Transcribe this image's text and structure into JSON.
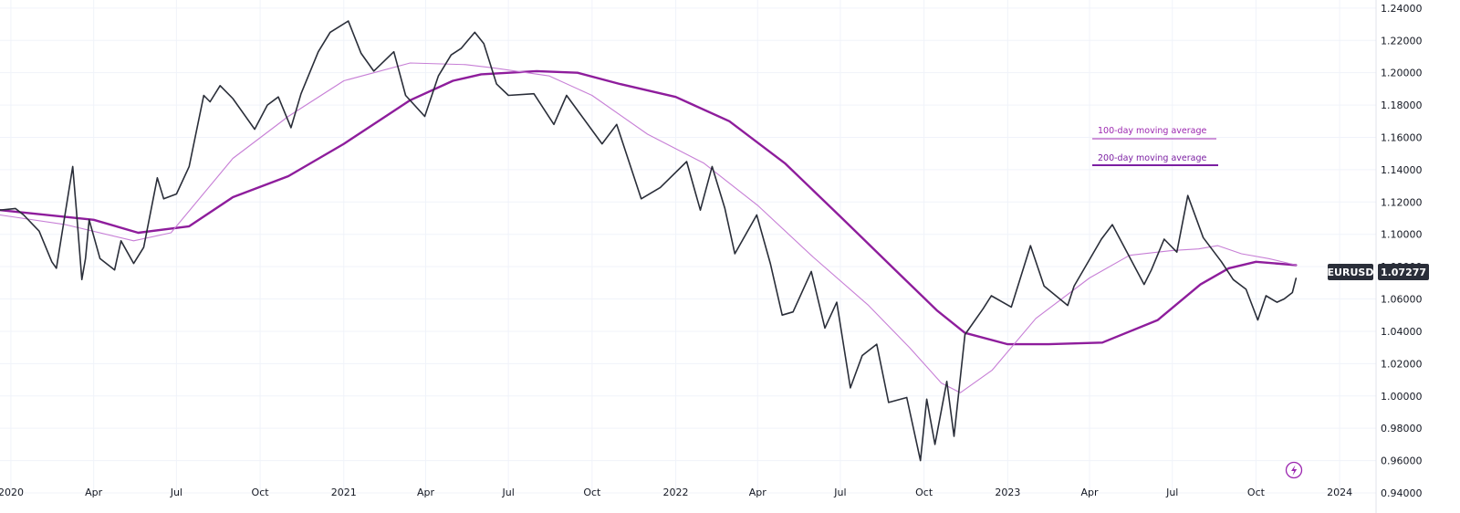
{
  "chart_data": {
    "type": "line",
    "title": "",
    "xlabel": "",
    "ylabel": "",
    "symbol": "EURUSD",
    "last_value": "1.07277",
    "ylim": [
      0.94,
      1.245
    ],
    "xlim": [
      "2019-12-20",
      "2024-02-10"
    ],
    "grid": true,
    "y_ticks": [
      "1.24000",
      "1.22000",
      "1.20000",
      "1.18000",
      "1.16000",
      "1.14000",
      "1.12000",
      "1.10000",
      "1.08000",
      "1.06000",
      "1.04000",
      "1.02000",
      "1.00000",
      "0.98000",
      "0.96000",
      "0.94000"
    ],
    "x_ticks": [
      {
        "label": "2020",
        "date": "2020-01-01"
      },
      {
        "label": "Apr",
        "date": "2020-04-01"
      },
      {
        "label": "Jul",
        "date": "2020-07-01"
      },
      {
        "label": "Oct",
        "date": "2020-10-01"
      },
      {
        "label": "2021",
        "date": "2021-01-01"
      },
      {
        "label": "Apr",
        "date": "2021-04-01"
      },
      {
        "label": "Jul",
        "date": "2021-07-01"
      },
      {
        "label": "Oct",
        "date": "2021-10-01"
      },
      {
        "label": "2022",
        "date": "2022-01-01"
      },
      {
        "label": "Apr",
        "date": "2022-04-01"
      },
      {
        "label": "Jul",
        "date": "2022-07-01"
      },
      {
        "label": "Oct",
        "date": "2022-10-01"
      },
      {
        "label": "2023",
        "date": "2023-01-01"
      },
      {
        "label": "Apr",
        "date": "2023-04-01"
      },
      {
        "label": "Jul",
        "date": "2023-07-01"
      },
      {
        "label": "Oct",
        "date": "2023-10-01"
      },
      {
        "label": "2024",
        "date": "2024-01-01"
      }
    ],
    "legend": [
      {
        "label": "100-day moving average",
        "color": "#c77fd6"
      },
      {
        "label": "200-day moving average",
        "color": "#8e1d9c"
      }
    ],
    "colors": {
      "price": "#2a2e39",
      "ma100": "#c77fd6",
      "ma200": "#8e1d9c",
      "badge": "#2a2e39",
      "grid": "#f0f3fa"
    },
    "series": [
      {
        "name": "EURUSD",
        "x": [
          "2019-12-20",
          "2020-01-06",
          "2020-01-15",
          "2020-02-01",
          "2020-02-15",
          "2020-02-20",
          "2020-03-09",
          "2020-03-13",
          "2020-03-19",
          "2020-03-23",
          "2020-03-27",
          "2020-04-08",
          "2020-04-24",
          "2020-05-01",
          "2020-05-15",
          "2020-05-26",
          "2020-06-10",
          "2020-06-17",
          "2020-07-01",
          "2020-07-15",
          "2020-07-31",
          "2020-08-07",
          "2020-08-18",
          "2020-09-01",
          "2020-09-25",
          "2020-10-09",
          "2020-10-21",
          "2020-11-04",
          "2020-11-15",
          "2020-12-04",
          "2020-12-17",
          "2021-01-06",
          "2021-01-20",
          "2021-02-03",
          "2021-02-25",
          "2021-03-10",
          "2021-03-31",
          "2021-04-15",
          "2021-04-29",
          "2021-05-10",
          "2021-05-25",
          "2021-06-04",
          "2021-06-18",
          "2021-07-01",
          "2021-07-29",
          "2021-08-20",
          "2021-09-03",
          "2021-10-12",
          "2021-10-28",
          "2021-11-24",
          "2021-12-15",
          "2022-01-13",
          "2022-01-28",
          "2022-02-10",
          "2022-02-24",
          "2022-03-07",
          "2022-03-31",
          "2022-04-15",
          "2022-04-28",
          "2022-05-10",
          "2022-05-30",
          "2022-06-14",
          "2022-06-27",
          "2022-07-12",
          "2022-07-25",
          "2022-08-10",
          "2022-08-23",
          "2022-09-12",
          "2022-09-27",
          "2022-10-04",
          "2022-10-13",
          "2022-10-26",
          "2022-11-03",
          "2022-11-15",
          "2022-12-05",
          "2022-12-14",
          "2023-01-05",
          "2023-01-26",
          "2023-02-10",
          "2023-03-08",
          "2023-03-15",
          "2023-04-14",
          "2023-04-26",
          "2023-05-31",
          "2023-06-08",
          "2023-06-22",
          "2023-07-06",
          "2023-07-18",
          "2023-08-04",
          "2023-08-24",
          "2023-09-06",
          "2023-09-20",
          "2023-10-03",
          "2023-10-12",
          "2023-10-24",
          "2023-11-01",
          "2023-11-10",
          "2023-11-14"
        ],
        "values": [
          1.115,
          1.116,
          1.112,
          1.102,
          1.083,
          1.079,
          1.142,
          1.115,
          1.072,
          1.085,
          1.109,
          1.085,
          1.078,
          1.096,
          1.082,
          1.092,
          1.135,
          1.122,
          1.125,
          1.142,
          1.186,
          1.182,
          1.192,
          1.184,
          1.165,
          1.18,
          1.185,
          1.166,
          1.187,
          1.213,
          1.225,
          1.232,
          1.212,
          1.201,
          1.213,
          1.186,
          1.173,
          1.198,
          1.211,
          1.215,
          1.225,
          1.218,
          1.193,
          1.186,
          1.187,
          1.168,
          1.186,
          1.156,
          1.168,
          1.122,
          1.129,
          1.145,
          1.115,
          1.142,
          1.116,
          1.088,
          1.112,
          1.082,
          1.05,
          1.052,
          1.077,
          1.042,
          1.058,
          1.005,
          1.025,
          1.032,
          0.996,
          0.999,
          0.96,
          0.998,
          0.97,
          1.009,
          0.975,
          1.038,
          1.054,
          1.062,
          1.055,
          1.093,
          1.068,
          1.056,
          1.068,
          1.097,
          1.106,
          1.069,
          1.078,
          1.097,
          1.089,
          1.124,
          1.098,
          1.083,
          1.072,
          1.066,
          1.047,
          1.062,
          1.058,
          1.06,
          1.064,
          1.0728
        ]
      },
      {
        "name": "100-day moving average",
        "x": [
          "2019-12-20",
          "2020-03-01",
          "2020-05-15",
          "2020-06-25",
          "2020-09-01",
          "2020-11-01",
          "2021-01-01",
          "2021-03-15",
          "2021-05-15",
          "2021-06-15",
          "2021-08-15",
          "2021-10-01",
          "2021-12-01",
          "2022-02-01",
          "2022-04-01",
          "2022-06-01",
          "2022-08-01",
          "2022-09-15",
          "2022-10-20",
          "2022-11-10",
          "2022-12-15",
          "2023-02-01",
          "2023-04-01",
          "2023-05-15",
          "2023-07-01",
          "2023-07-30",
          "2023-08-20",
          "2023-09-15",
          "2023-10-15",
          "2023-11-14"
        ],
        "values": [
          1.112,
          1.106,
          1.096,
          1.101,
          1.147,
          1.173,
          1.195,
          1.206,
          1.205,
          1.203,
          1.198,
          1.186,
          1.162,
          1.144,
          1.118,
          1.086,
          1.056,
          1.03,
          1.008,
          1.002,
          1.016,
          1.048,
          1.073,
          1.087,
          1.09,
          1.091,
          1.093,
          1.088,
          1.085,
          1.081
        ]
      },
      {
        "name": "200-day moving average",
        "x": [
          "2019-12-20",
          "2020-04-01",
          "2020-05-20",
          "2020-07-15",
          "2020-09-01",
          "2020-11-01",
          "2021-01-01",
          "2021-03-15",
          "2021-05-01",
          "2021-06-01",
          "2021-08-01",
          "2021-09-15",
          "2021-11-01",
          "2022-01-01",
          "2022-03-01",
          "2022-05-01",
          "2022-07-01",
          "2022-09-01",
          "2022-10-15",
          "2022-11-15",
          "2023-01-01",
          "2023-02-15",
          "2023-04-15",
          "2023-06-15",
          "2023-08-01",
          "2023-09-01",
          "2023-10-01",
          "2023-11-14"
        ],
        "values": [
          1.115,
          1.109,
          1.101,
          1.105,
          1.123,
          1.136,
          1.156,
          1.183,
          1.195,
          1.199,
          1.201,
          1.2,
          1.193,
          1.185,
          1.17,
          1.144,
          1.111,
          1.077,
          1.053,
          1.039,
          1.032,
          1.032,
          1.033,
          1.047,
          1.069,
          1.079,
          1.083,
          1.081
        ]
      }
    ]
  },
  "footer": {
    "lightning_icon": "lightning-icon"
  }
}
